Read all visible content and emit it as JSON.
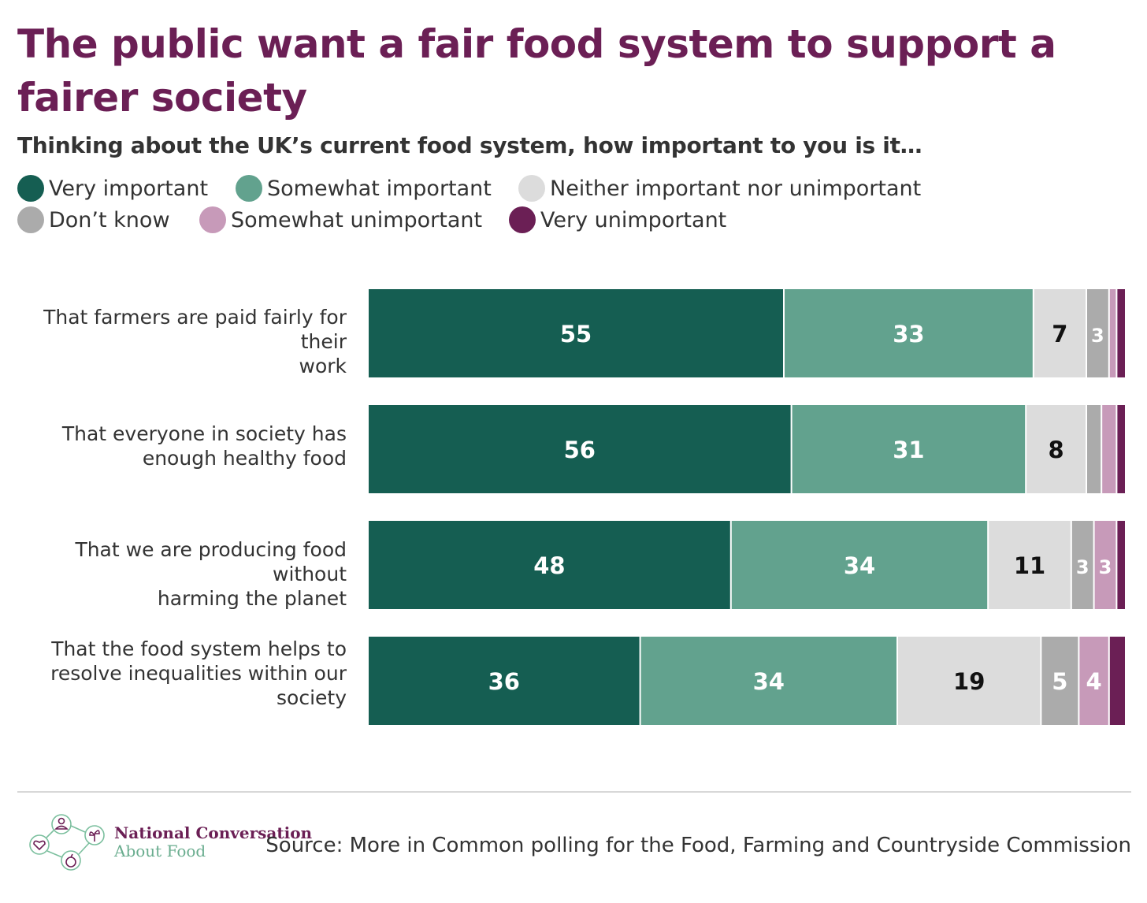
{
  "title": "The public want a fair food system to support a fairer society",
  "subtitle": "Thinking about the UK’s current food system, how important to you is it…",
  "colors": {
    "title": "#6b1f55",
    "very_important": "#155e52",
    "somewhat_important": "#62a28e",
    "neither": "#dcdcdc",
    "dont_know": "#ababab",
    "somewhat_unimportant": "#c79ab9",
    "very_unimportant": "#6b1f55"
  },
  "legend": [
    {
      "label": "Very important",
      "color": "#155e52"
    },
    {
      "label": "Somewhat important",
      "color": "#62a28e"
    },
    {
      "label": "Neither important nor unimportant",
      "color": "#dcdcdc"
    },
    {
      "label": "Don’t know",
      "color": "#ababab"
    },
    {
      "label": "Somewhat unimportant",
      "color": "#c79ab9"
    },
    {
      "label": "Very unimportant",
      "color": "#6b1f55"
    }
  ],
  "chart_data": {
    "type": "bar",
    "orientation": "horizontal",
    "stacked": true,
    "categories": [
      "That farmers are paid fairly for their work",
      "That everyone in society has enough healthy food",
      "That we are producing food without harming the planet",
      "That the food system helps to resolve inequalities within our society"
    ],
    "category_lines": [
      [
        "That farmers are paid fairly for their",
        "work"
      ],
      [
        "That everyone in society has",
        "enough healthy food"
      ],
      [
        "That we are producing food without",
        "harming the planet"
      ],
      [
        "That the food system helps to",
        "resolve inequalities within our",
        "society"
      ]
    ],
    "series": [
      {
        "name": "Very important",
        "values": [
          55,
          56,
          48,
          36
        ],
        "labels": [
          "55",
          "56",
          "48",
          "36"
        ],
        "color": "#155e52",
        "label_color": "#ffffff"
      },
      {
        "name": "Somewhat important",
        "values": [
          33,
          31,
          34,
          34
        ],
        "labels": [
          "33",
          "31",
          "34",
          "34"
        ],
        "color": "#62a28e",
        "label_color": "#ffffff"
      },
      {
        "name": "Neither important nor unimportant",
        "values": [
          7,
          8,
          11,
          19
        ],
        "labels": [
          "7",
          "8",
          "11",
          "19"
        ],
        "color": "#dcdcdc",
        "label_color": "#111111"
      },
      {
        "name": "Don’t know",
        "values": [
          3,
          2,
          3,
          5
        ],
        "labels": [
          "3",
          "",
          "3",
          "5"
        ],
        "color": "#ababab",
        "label_color": "#ffffff"
      },
      {
        "name": "Somewhat unimportant",
        "values": [
          1,
          2,
          3,
          4
        ],
        "labels": [
          "",
          "",
          "3",
          "4"
        ],
        "color": "#c79ab9",
        "label_color": "#ffffff"
      },
      {
        "name": "Very unimportant",
        "values": [
          1,
          1,
          1,
          2
        ],
        "labels": [
          "",
          "",
          "",
          ""
        ],
        "color": "#6b1f55",
        "label_color": "#ffffff"
      }
    ],
    "xlim": [
      0,
      100
    ],
    "legend_position": "top-left",
    "grid": false
  },
  "footer": {
    "org_line1": "National Conversation",
    "org_line2": "About Food",
    "source": "Source: More in Common polling for the Food, Farming and Countryside Commission"
  }
}
